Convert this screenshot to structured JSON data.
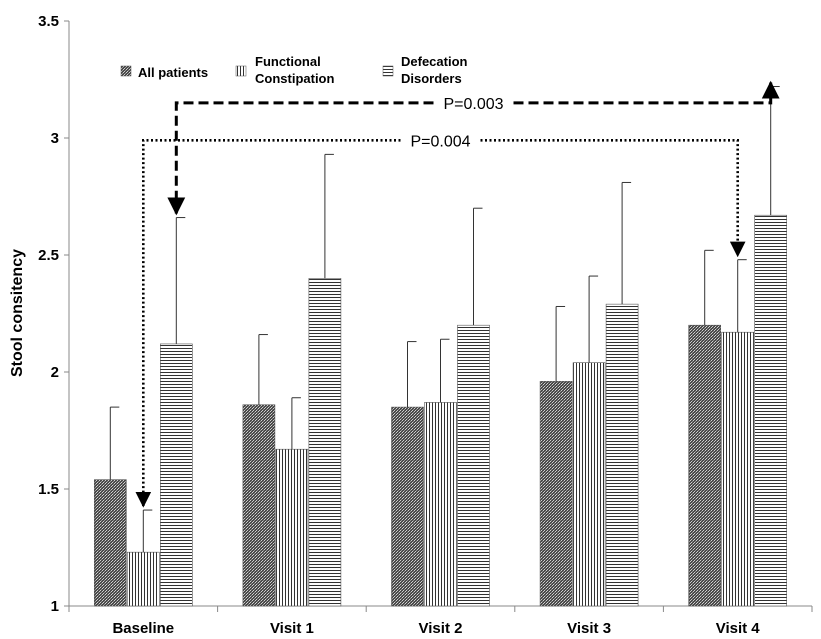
{
  "chart_data": {
    "type": "bar",
    "title": "",
    "xlabel": "",
    "ylabel": "Stool consitency",
    "ylim": [
      1,
      3.5
    ],
    "yticks": [
      "1",
      "1.5",
      "2",
      "2.5",
      "3",
      "3.5"
    ],
    "categories": [
      "Baseline",
      "Visit 1",
      "Visit 2",
      "Visit 3",
      "Visit 4"
    ],
    "series": [
      {
        "name": "All patients",
        "pattern": "crosshatch",
        "values": [
          1.54,
          1.86,
          1.85,
          1.96,
          2.2
        ],
        "error": [
          0.31,
          0.3,
          0.28,
          0.32,
          0.32
        ]
      },
      {
        "name": "Functional Constipation",
        "pattern": "vertical",
        "values": [
          1.23,
          1.67,
          1.87,
          2.04,
          2.17
        ],
        "error": [
          0.18,
          0.22,
          0.27,
          0.37,
          0.31
        ]
      },
      {
        "name": "Defecation Disorders",
        "pattern": "horizontal",
        "values": [
          2.12,
          2.4,
          2.2,
          2.29,
          2.67
        ],
        "error": [
          0.54,
          0.53,
          0.5,
          0.52,
          0.55
        ]
      }
    ],
    "legend": {
      "placement": "top-left",
      "entries": [
        {
          "lines": [
            "All patients"
          ]
        },
        {
          "lines": [
            "Functional",
            "Constipation"
          ]
        },
        {
          "lines": [
            "Defecation",
            "Disorders"
          ]
        }
      ]
    },
    "annotations": [
      {
        "label": "P=0.003",
        "style": "dashed",
        "from": "Baseline / Defecation Disorders",
        "to": "Visit 4 / Defecation Disorders",
        "level": 3.15
      },
      {
        "label": "P=0.004",
        "style": "dotted",
        "from": "Baseline / Functional Constipation",
        "to": "Visit 4 / Functional Constipation",
        "level": 2.99
      }
    ],
    "grid": false
  }
}
